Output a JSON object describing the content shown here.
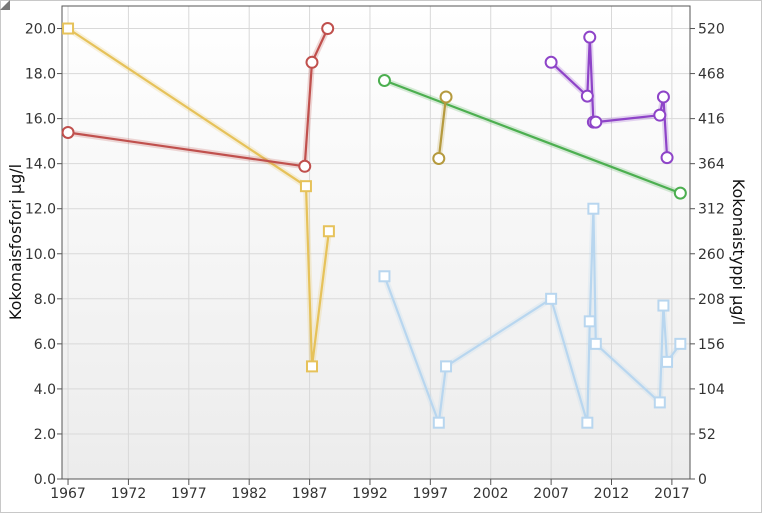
{
  "chart_data": {
    "type": "line",
    "title": "",
    "xlabel": "",
    "ylabel_left": "Kokonaisfosfori µg/l",
    "ylabel_right": "Kokonaistyppi µg/l",
    "xlim": [
      1966.5,
      2018.5
    ],
    "ylim_left": [
      0,
      21
    ],
    "ylim_right": [
      0,
      546
    ],
    "x_ticks": [
      1967,
      1972,
      1977,
      1982,
      1987,
      1992,
      1997,
      2002,
      2007,
      2012,
      2017
    ],
    "y_ticks_left": [
      "0.0",
      "2.0",
      "4.0",
      "6.0",
      "8.0",
      "10.0",
      "12.0",
      "14.0",
      "16.0",
      "18.0",
      "20.0"
    ],
    "y_ticks_right": [
      "0",
      "52",
      "104",
      "156",
      "208",
      "260",
      "312",
      "364",
      "416",
      "468",
      "520"
    ],
    "grid": true,
    "legend": "none",
    "series": [
      {
        "axis": "left",
        "color": "#e6c25a",
        "marker": "square",
        "points": [
          [
            1967.0,
            20.0
          ],
          [
            1986.7,
            13.0
          ],
          [
            1987.2,
            5.0
          ],
          [
            1988.6,
            11.0
          ]
        ]
      },
      {
        "axis": "right",
        "color": "#c0504d",
        "marker": "circle",
        "points": [
          [
            1967.0,
            400
          ],
          [
            1986.6,
            361
          ],
          [
            1987.2,
            481
          ],
          [
            1988.5,
            520
          ]
        ]
      },
      {
        "axis": "left",
        "color": "#b8d6ef",
        "marker": "square",
        "points": [
          [
            1993.2,
            9.0
          ],
          [
            1997.7,
            2.5
          ],
          [
            1998.3,
            5.0
          ],
          [
            2007.0,
            8.0
          ],
          [
            2010.0,
            2.5
          ],
          [
            2010.2,
            7.0
          ],
          [
            2010.5,
            12.0
          ],
          [
            2010.7,
            6.0
          ],
          [
            2016.0,
            3.4
          ],
          [
            2016.3,
            7.7
          ],
          [
            2016.6,
            5.2
          ],
          [
            2017.7,
            6.0
          ]
        ]
      },
      {
        "axis": "right",
        "color": "#4caf50",
        "marker": "circle",
        "points": [
          [
            1993.2,
            460
          ],
          [
            2017.7,
            330
          ]
        ]
      },
      {
        "axis": "right",
        "color": "#b59a3e",
        "marker": "circle",
        "points": [
          [
            1997.7,
            370
          ],
          [
            1998.3,
            441
          ]
        ]
      },
      {
        "axis": "right",
        "color": "#8e44c8",
        "marker": "circle",
        "points": [
          [
            2007.0,
            481
          ],
          [
            2010.0,
            442
          ],
          [
            2010.2,
            510
          ],
          [
            2010.5,
            412
          ],
          [
            2010.7,
            412
          ],
          [
            2016.0,
            420
          ],
          [
            2016.3,
            441
          ],
          [
            2016.6,
            371
          ]
        ]
      }
    ]
  },
  "colors": {
    "grid": "#d9d9d9",
    "axis": "#555555",
    "plot_bg_top": "#ffffff",
    "plot_bg_bottom": "#ececec"
  },
  "icons": {
    "resize": "resize-grip-icon"
  }
}
